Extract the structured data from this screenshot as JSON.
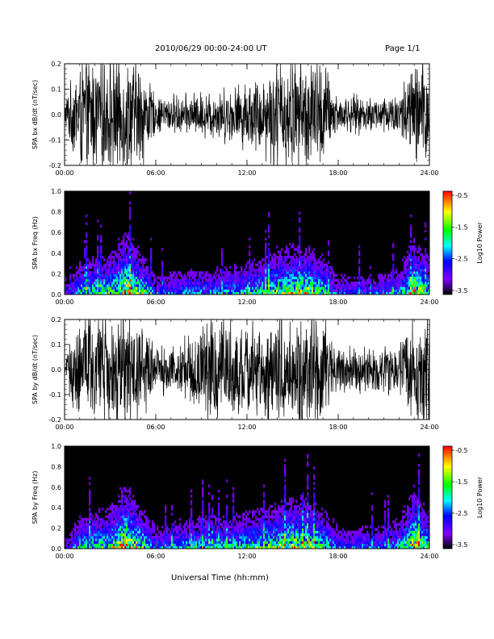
{
  "header": {
    "title": "2010/06/29  00:00-24:00 UT",
    "page": "Page 1/1"
  },
  "x_axis_title": "Universal Time (hh:mm)",
  "colorbar": {
    "label": "Log10 Power",
    "ticks": [
      "-0.5",
      "-1.5",
      "-2.5",
      "-3.5"
    ],
    "colors": [
      "#ff0000",
      "#ffff00",
      "#00ff00",
      "#00ffff",
      "#0000ff",
      "#8000ff",
      "#000000"
    ]
  },
  "chart_data": [
    {
      "type": "line",
      "ylabel": "SPA bx dB/dt (nT/sec)",
      "xlim": [
        "00:00",
        "24:00"
      ],
      "ylim": [
        -0.2,
        0.2
      ],
      "x_ticks": [
        "00:00",
        "06:00",
        "12:00",
        "18:00",
        "24:00"
      ],
      "y_ticks": [
        "0.2",
        "0.1",
        "0.0",
        "-0.1",
        "-0.2"
      ],
      "x_hours": [
        0,
        1,
        2,
        3,
        4,
        5,
        6,
        7,
        8,
        9,
        10,
        11,
        12,
        13,
        14,
        15,
        16,
        17,
        18,
        19,
        20,
        21,
        22,
        23,
        24
      ],
      "envelope_amplitude": [
        0.05,
        0.2,
        0.2,
        0.2,
        0.2,
        0.2,
        0.06,
        0.07,
        0.07,
        0.08,
        0.09,
        0.1,
        0.12,
        0.14,
        0.2,
        0.2,
        0.2,
        0.2,
        0.06,
        0.07,
        0.06,
        0.07,
        0.08,
        0.2,
        0.2
      ],
      "series": [
        {
          "color": "#000000"
        }
      ]
    },
    {
      "type": "heatmap",
      "ylabel": "SPA bx Freq (Hz)",
      "xlim": [
        "00:00",
        "24:00"
      ],
      "ylim": [
        0.0,
        1.0
      ],
      "x_ticks": [
        "00:00",
        "06:00",
        "12:00",
        "18:00",
        "24:00"
      ],
      "y_ticks": [
        "1.0",
        "0.8",
        "0.6",
        "0.4",
        "0.2",
        "0.0"
      ],
      "zlim": [
        -3.5,
        -0.5
      ],
      "x_hours": [
        0,
        1,
        2,
        3,
        4,
        5,
        6,
        7,
        8,
        9,
        10,
        11,
        12,
        13,
        14,
        15,
        16,
        17,
        18,
        19,
        20,
        21,
        22,
        23,
        24
      ],
      "activity": [
        0.2,
        0.55,
        0.6,
        0.65,
        0.9,
        0.7,
        0.35,
        0.4,
        0.45,
        0.45,
        0.45,
        0.5,
        0.55,
        0.6,
        0.7,
        0.75,
        0.75,
        0.6,
        0.35,
        0.35,
        0.35,
        0.4,
        0.45,
        0.85,
        0.6
      ]
    },
    {
      "type": "line",
      "ylabel": "SPA by dB/dt (nT/sec)",
      "xlim": [
        "00:00",
        "24:00"
      ],
      "ylim": [
        -0.2,
        0.2
      ],
      "x_ticks": [
        "00:00",
        "06:00",
        "12:00",
        "18:00",
        "24:00"
      ],
      "y_ticks": [
        "0.2",
        "0.1",
        "0.0",
        "-0.1",
        "-0.2"
      ],
      "x_hours": [
        0,
        1,
        2,
        3,
        4,
        5,
        6,
        7,
        8,
        9,
        10,
        11,
        12,
        13,
        14,
        15,
        16,
        17,
        18,
        19,
        20,
        21,
        22,
        23,
        24
      ],
      "envelope_amplitude": [
        0.04,
        0.2,
        0.2,
        0.2,
        0.2,
        0.2,
        0.08,
        0.09,
        0.12,
        0.15,
        0.2,
        0.18,
        0.16,
        0.17,
        0.2,
        0.2,
        0.2,
        0.2,
        0.08,
        0.08,
        0.08,
        0.09,
        0.1,
        0.2,
        0.2
      ],
      "series": [
        {
          "color": "#000000"
        }
      ]
    },
    {
      "type": "heatmap",
      "ylabel": "SPA by Freq (Hz)",
      "xlim": [
        "00:00",
        "24:00"
      ],
      "ylim": [
        0.0,
        1.0
      ],
      "x_ticks": [
        "00:00",
        "06:00",
        "12:00",
        "18:00",
        "24:00"
      ],
      "y_ticks": [
        "1.0",
        "0.8",
        "0.6",
        "0.4",
        "0.2",
        "0.0"
      ],
      "zlim": [
        -3.5,
        -0.5
      ],
      "x_hours": [
        0,
        1,
        2,
        3,
        4,
        5,
        6,
        7,
        8,
        9,
        10,
        11,
        12,
        13,
        14,
        15,
        16,
        17,
        18,
        19,
        20,
        21,
        22,
        23,
        24
      ],
      "activity": [
        0.2,
        0.55,
        0.6,
        0.65,
        0.95,
        0.7,
        0.4,
        0.45,
        0.5,
        0.55,
        0.55,
        0.55,
        0.6,
        0.65,
        0.7,
        0.8,
        0.75,
        0.65,
        0.4,
        0.4,
        0.4,
        0.4,
        0.5,
        0.9,
        0.6
      ]
    }
  ]
}
